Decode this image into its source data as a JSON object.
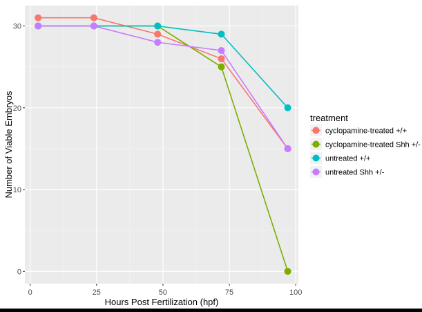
{
  "chart_data": {
    "type": "line",
    "title": "",
    "xlabel": "Hours Post Fertilization (hpf)",
    "ylabel": "Number of Viable Embryos",
    "xlim": [
      -2,
      101
    ],
    "ylim": [
      -1.5,
      32.5
    ],
    "x_ticks": [
      0,
      25,
      50,
      75,
      100
    ],
    "y_ticks": [
      0,
      10,
      20,
      30
    ],
    "x_tick_labels": [
      "0",
      "25",
      "50",
      "75",
      "100"
    ],
    "y_tick_labels": [
      "0",
      "10",
      "20",
      "30"
    ],
    "grid": true,
    "legend": {
      "title": "treatment",
      "position": "right"
    },
    "series": [
      {
        "name": "cyclopamine-treated +/+",
        "color": "#F8766D",
        "points": [
          [
            3,
            31
          ],
          [
            24,
            31
          ],
          [
            48,
            29
          ],
          [
            72,
            26
          ],
          [
            97,
            15
          ]
        ]
      },
      {
        "name": "cyclopamine-treated Shh +/-",
        "color": "#7CAE00",
        "points": [
          [
            3,
            30
          ],
          [
            24,
            30
          ],
          [
            48,
            30
          ],
          [
            72,
            25
          ],
          [
            97,
            0
          ]
        ]
      },
      {
        "name": "untreated +/+",
        "color": "#00BFC4",
        "points": [
          [
            3,
            30
          ],
          [
            24,
            30
          ],
          [
            48,
            30
          ],
          [
            72,
            29
          ],
          [
            97,
            20
          ]
        ]
      },
      {
        "name": "untreated Shh +/-",
        "color": "#C77CFF",
        "points": [
          [
            3,
            30
          ],
          [
            24,
            30
          ],
          [
            48,
            28
          ],
          [
            72,
            27
          ],
          [
            97,
            15
          ]
        ]
      }
    ]
  }
}
